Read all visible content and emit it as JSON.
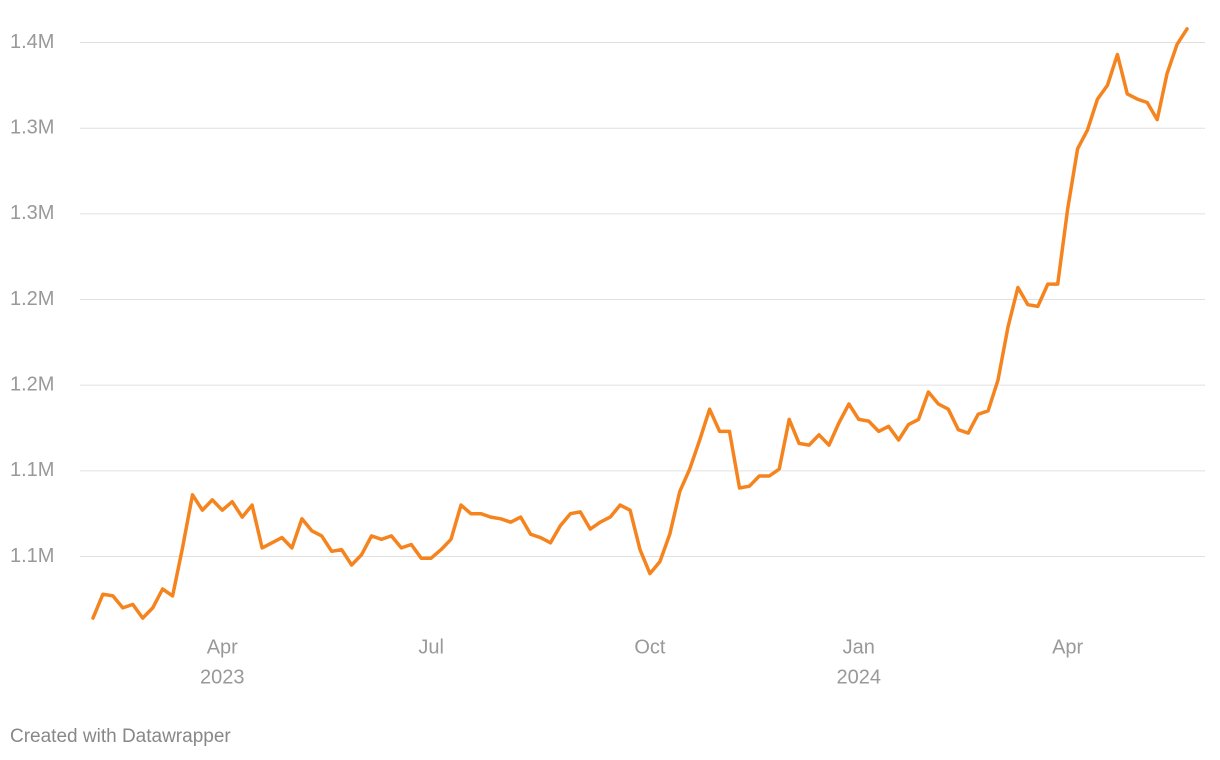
{
  "chart_data": {
    "type": "line",
    "categories": [
      null,
      null,
      null,
      null,
      null,
      null,
      null,
      null,
      null,
      null,
      null,
      null,
      null,
      "Apr",
      null,
      null,
      null,
      null,
      null,
      null,
      null,
      null,
      null,
      null,
      null,
      null,
      null,
      null,
      null,
      null,
      null,
      null,
      null,
      null,
      "Jul",
      null,
      null,
      null,
      null,
      null,
      null,
      null,
      null,
      null,
      null,
      null,
      null,
      null,
      null,
      null,
      null,
      null,
      null,
      null,
      null,
      null,
      "Oct",
      null,
      null,
      null,
      null,
      null,
      null,
      null,
      null,
      null,
      null,
      null,
      null,
      null,
      null,
      null,
      null,
      null,
      null,
      null,
      null,
      "Jan",
      null,
      null,
      null,
      null,
      null,
      null,
      null,
      null,
      null,
      null,
      null,
      null,
      null,
      null,
      null,
      null,
      null,
      null,
      null,
      null,
      "Apr",
      null,
      null,
      null,
      null,
      null,
      null,
      null,
      null,
      null,
      null,
      null,
      null
    ],
    "x_sublabels": [
      null,
      null,
      null,
      null,
      null,
      null,
      null,
      null,
      null,
      null,
      null,
      null,
      null,
      "2023",
      null,
      null,
      null,
      null,
      null,
      null,
      null,
      null,
      null,
      null,
      null,
      null,
      null,
      null,
      null,
      null,
      null,
      null,
      null,
      null,
      null,
      null,
      null,
      null,
      null,
      null,
      null,
      null,
      null,
      null,
      null,
      null,
      null,
      null,
      null,
      null,
      null,
      null,
      null,
      null,
      null,
      null,
      null,
      null,
      null,
      null,
      null,
      null,
      null,
      null,
      null,
      null,
      null,
      null,
      null,
      null,
      null,
      null,
      null,
      null,
      null,
      null,
      null,
      "2024",
      null,
      null,
      null,
      null,
      null,
      null,
      null,
      null,
      null,
      null,
      null,
      null,
      null,
      null,
      null,
      null,
      null,
      null,
      null,
      null,
      null,
      null,
      null,
      null,
      null,
      null,
      null,
      null,
      null,
      null,
      null,
      null,
      null
    ],
    "values": [
      1014000,
      1028000,
      1027000,
      1020000,
      1022000,
      1014000,
      1020000,
      1031000,
      1027000,
      1055000,
      1086000,
      1077000,
      1083000,
      1077000,
      1082000,
      1073000,
      1080000,
      1055000,
      1058000,
      1061000,
      1055000,
      1072000,
      1065000,
      1062000,
      1053000,
      1054000,
      1045000,
      1051000,
      1062000,
      1060000,
      1062000,
      1055000,
      1057000,
      1049000,
      1049000,
      1054000,
      1060000,
      1080000,
      1075000,
      1075000,
      1073000,
      1072000,
      1070000,
      1073000,
      1063000,
      1061000,
      1058000,
      1068000,
      1075000,
      1076000,
      1066000,
      1070000,
      1073000,
      1080000,
      1077000,
      1054000,
      1040000,
      1047000,
      1063000,
      1088000,
      1101000,
      1118000,
      1136000,
      1123000,
      1123000,
      1090000,
      1091000,
      1097000,
      1097000,
      1101000,
      1130000,
      1116000,
      1115000,
      1121000,
      1115000,
      1128000,
      1139000,
      1130000,
      1129000,
      1123000,
      1126000,
      1118000,
      1127000,
      1130000,
      1146000,
      1139000,
      1136000,
      1124000,
      1122000,
      1133000,
      1135000,
      1153000,
      1184000,
      1207000,
      1197000,
      1196000,
      1209000,
      1209000,
      1253000,
      1288000,
      1299000,
      1317000,
      1325000,
      1343000,
      1320000,
      1317000,
      1315000,
      1305000,
      1332000,
      1349000,
      1358000
    ],
    "color": "#f5841f",
    "ylim": [
      1010000,
      1362000
    ],
    "yticks": [
      {
        "value": 1050000,
        "label": "1.1M"
      },
      {
        "value": 1100000,
        "label": "1.1M"
      },
      {
        "value": 1150000,
        "label": "1.2M"
      },
      {
        "value": 1200000,
        "label": "1.2M"
      },
      {
        "value": 1250000,
        "label": "1.3M"
      },
      {
        "value": 1300000,
        "label": "1.3M"
      },
      {
        "value": 1350000,
        "label": "1.4M"
      }
    ],
    "grid": true,
    "credit": "Created with Datawrapper"
  }
}
